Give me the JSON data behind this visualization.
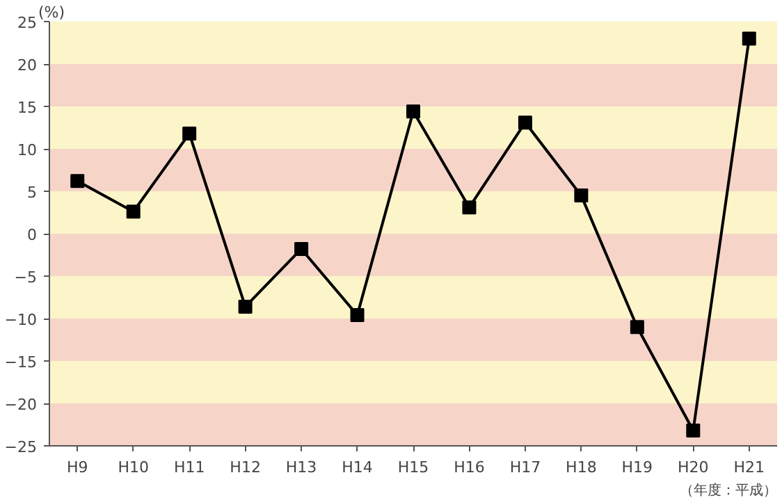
{
  "chart_data": {
    "type": "line",
    "ylabel": "(%)",
    "annotations": [
      "（年度：平成）"
    ],
    "categories": [
      "H9",
      "H10",
      "H11",
      "H12",
      "H13",
      "H14",
      "H15",
      "H16",
      "H17",
      "H18",
      "H19",
      "H20",
      "H21"
    ],
    "series": [
      {
        "color": "#000000",
        "values": [
          6.2,
          2.6,
          11.8,
          -8.6,
          -1.8,
          -9.6,
          14.4,
          3.1,
          13.1,
          4.5,
          -11,
          -23.2,
          23
        ]
      }
    ],
    "ylim": [
      -25,
      25
    ],
    "yticks": [
      -25,
      -20,
      -15,
      -10,
      -5,
      0,
      5,
      10,
      15,
      20,
      25
    ],
    "bands": [
      {
        "axis": "y",
        "from": 20,
        "to": 25,
        "color": "#fbf5c9"
      },
      {
        "axis": "y",
        "from": 15,
        "to": 20,
        "color": "#f6d5c8"
      },
      {
        "axis": "y",
        "from": 10,
        "to": 15,
        "color": "#fbf5c9"
      },
      {
        "axis": "y",
        "from": 5,
        "to": 10,
        "color": "#f6d5c8"
      },
      {
        "axis": "y",
        "from": 0,
        "to": 5,
        "color": "#fbf5c9"
      },
      {
        "axis": "y",
        "from": -5,
        "to": 0,
        "color": "#f6d5c8"
      },
      {
        "axis": "y",
        "from": -10,
        "to": -5,
        "color": "#fbf5c9"
      },
      {
        "axis": "y",
        "from": -15,
        "to": -10,
        "color": "#f6d5c8"
      },
      {
        "axis": "y",
        "from": -20,
        "to": -15,
        "color": "#fbf5c9"
      },
      {
        "axis": "y",
        "from": -25,
        "to": -20,
        "color": "#f6d5c8"
      }
    ],
    "marker": "square",
    "line_style": "solid"
  }
}
